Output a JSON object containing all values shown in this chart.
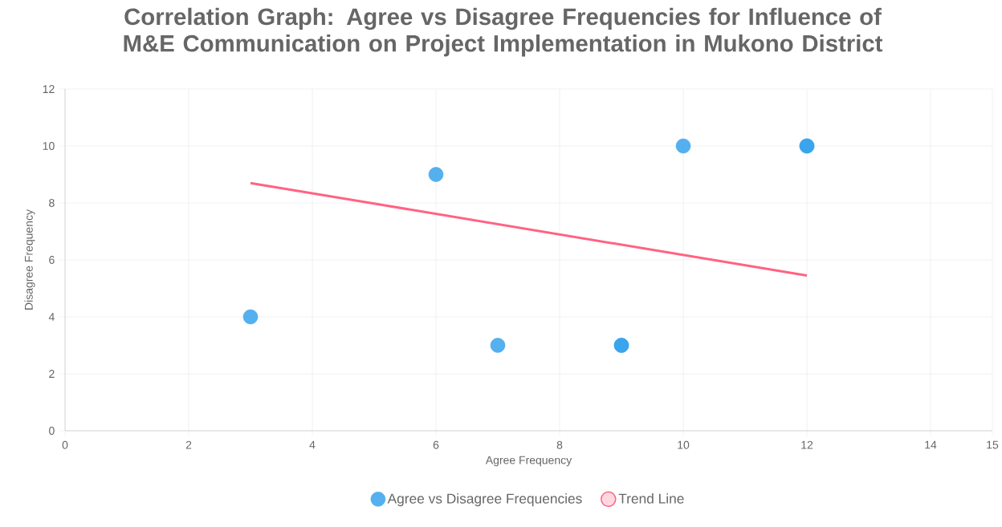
{
  "chart_data": {
    "type": "scatter",
    "title": "Correlation Graph: Agree vs Disagree Frequencies for Influence of M&E Communication on Project Implementation in Mukono District",
    "xlabel": "Agree Frequency",
    "ylabel": "Disagree Frequency",
    "xlim": [
      0,
      15
    ],
    "ylim": [
      0,
      12
    ],
    "xticks": [
      0,
      2,
      4,
      6,
      8,
      10,
      12,
      14,
      15
    ],
    "yticks": [
      0,
      2,
      4,
      6,
      8,
      10,
      12
    ],
    "grid": true,
    "legend": "bottom",
    "marker": "circle",
    "series": [
      {
        "name": "Agree vs Disagree Frequencies",
        "color": "#36a2eb",
        "x": [
          3,
          6,
          7,
          9,
          9,
          10,
          12,
          12
        ],
        "values": [
          4,
          9,
          3,
          3,
          3,
          10,
          10,
          10
        ]
      },
      {
        "name": "Trend Line",
        "type": "line",
        "color": "#ff6384",
        "marker": "none",
        "x": [
          3,
          12
        ],
        "values": [
          8.7,
          5.45
        ]
      }
    ]
  }
}
